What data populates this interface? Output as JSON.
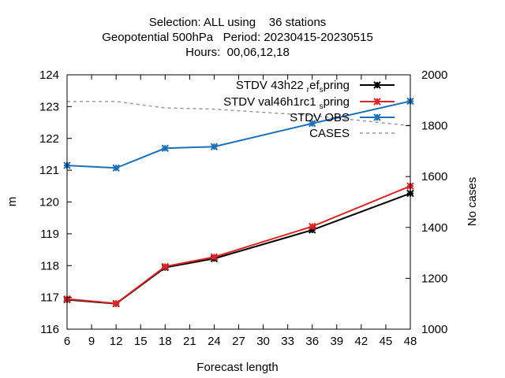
{
  "chart_data": {
    "type": "line",
    "title_lines": [
      "Selection: ALL using    36 stations",
      "Geopotential 500hPa   Period: 20230415-20230515",
      "Hours:  00,06,12,18"
    ],
    "xlabel": "Forecast length",
    "ylabel": "m",
    "y2label": "No cases",
    "xlim": [
      6,
      48
    ],
    "ylim": [
      116,
      124
    ],
    "y2lim": [
      1000,
      2000
    ],
    "xticks": [
      "6",
      "9",
      "12",
      "15",
      "18",
      "21",
      "24",
      "27",
      "30",
      "33",
      "36",
      "39",
      "42",
      "45",
      "48"
    ],
    "yticks": [
      "116",
      "117",
      "118",
      "119",
      "120",
      "121",
      "122",
      "123",
      "124"
    ],
    "y2ticks": [
      "1000",
      "1200",
      "1400",
      "1600",
      "1800",
      "2000"
    ],
    "legend_position": "top-right",
    "series": [
      {
        "name": "STDV 43h22 r ef s pring",
        "legend_main": "STDV 43h22",
        "legend_parts": [
          [
            "r",
            "sub"
          ],
          [
            "ef",
            "base"
          ],
          [
            "s",
            "sub"
          ],
          [
            "pring",
            "base"
          ]
        ],
        "color": "#000000",
        "style": "solid",
        "marker": "star",
        "axis": "y",
        "x": [
          6,
          12,
          18,
          24,
          36,
          48
        ],
        "values": [
          116.93,
          116.8,
          117.94,
          118.22,
          119.12,
          120.27
        ]
      },
      {
        "name": "STDV val46h1rc1 s pring",
        "legend_main": "STDV val46h1rc1",
        "legend_parts": [
          [
            "s",
            "sub"
          ],
          [
            "pring",
            "base"
          ]
        ],
        "color": "#d62728",
        "style": "solid",
        "marker": "star",
        "axis": "y",
        "x": [
          6,
          12,
          18,
          24,
          36,
          48
        ],
        "values": [
          116.95,
          116.81,
          117.97,
          118.27,
          119.23,
          120.5
        ]
      },
      {
        "name": "STDV OBS",
        "legend_main": "STDV OBS",
        "legend_parts": [],
        "color": "#1f6fb4",
        "style": "solid",
        "marker": "star",
        "axis": "y",
        "x": [
          6,
          12,
          18,
          24,
          36,
          48
        ],
        "values": [
          121.15,
          121.07,
          121.69,
          121.74,
          122.47,
          123.17
        ]
      },
      {
        "name": "CASES",
        "legend_main": "CASES",
        "legend_parts": [],
        "color": "#999999",
        "style": "dashed",
        "marker": "none",
        "axis": "y2",
        "x": [
          6,
          12,
          18,
          24,
          36,
          48
        ],
        "values": [
          1895,
          1895,
          1870,
          1865,
          1840,
          1800
        ]
      }
    ]
  }
}
